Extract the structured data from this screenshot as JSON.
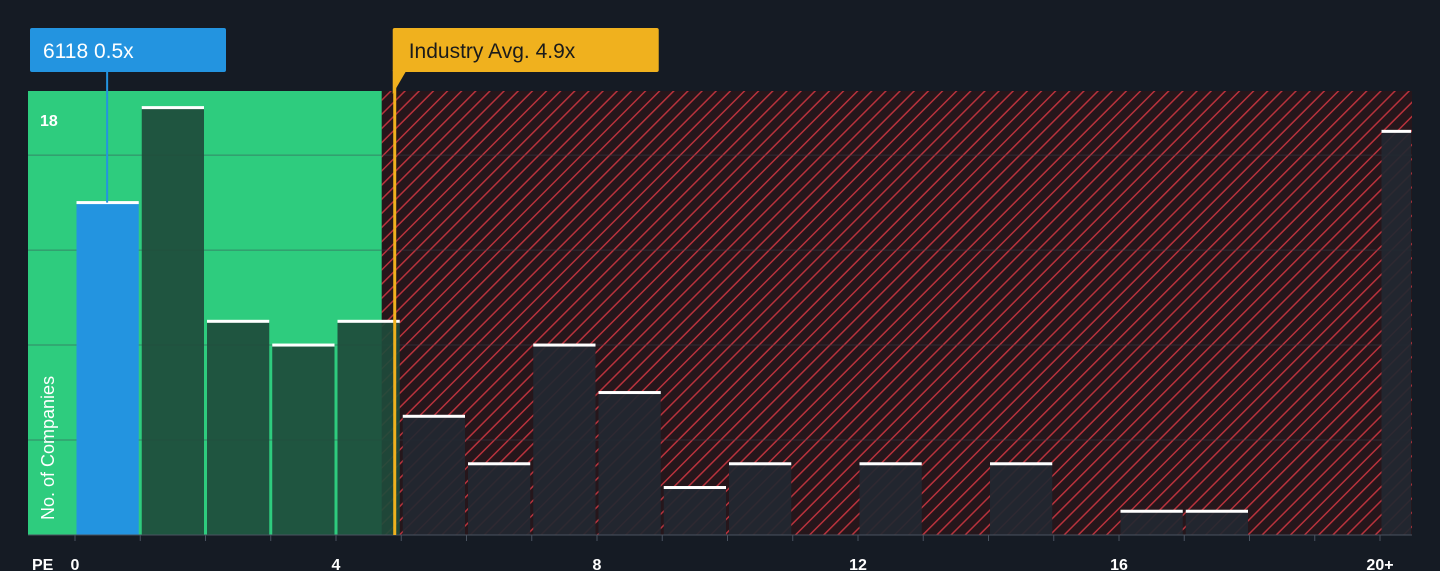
{
  "chart_data": {
    "type": "bar",
    "x_axis_label": "PE",
    "y_axis_label": "No. of Companies",
    "x_ticks": [
      "0",
      "4",
      "8",
      "12",
      "16",
      "20+"
    ],
    "y_ticks": [
      "18"
    ],
    "ylim": [
      0,
      18.7
    ],
    "x_range": [
      0,
      20.5
    ],
    "bins": [
      {
        "x0": 0,
        "x1": 1,
        "count": 14,
        "highlight": true
      },
      {
        "x0": 1,
        "x1": 2,
        "count": 18
      },
      {
        "x0": 2,
        "x1": 3,
        "count": 9
      },
      {
        "x0": 3,
        "x1": 4,
        "count": 8
      },
      {
        "x0": 4,
        "x1": 5,
        "count": 9
      },
      {
        "x0": 5,
        "x1": 6,
        "count": 5
      },
      {
        "x0": 6,
        "x1": 7,
        "count": 3
      },
      {
        "x0": 7,
        "x1": 8,
        "count": 8
      },
      {
        "x0": 8,
        "x1": 9,
        "count": 6
      },
      {
        "x0": 9,
        "x1": 10,
        "count": 2
      },
      {
        "x0": 10,
        "x1": 11,
        "count": 3
      },
      {
        "x0": 11,
        "x1": 12,
        "count": 0
      },
      {
        "x0": 12,
        "x1": 13,
        "count": 3
      },
      {
        "x0": 13,
        "x1": 14,
        "count": 0
      },
      {
        "x0": 14,
        "x1": 15,
        "count": 3
      },
      {
        "x0": 15,
        "x1": 16,
        "count": 0
      },
      {
        "x0": 16,
        "x1": 17,
        "count": 1
      },
      {
        "x0": 17,
        "x1": 18,
        "count": 1
      },
      {
        "x0": 18,
        "x1": 19,
        "count": 0
      },
      {
        "x0": 19,
        "x1": 20,
        "count": 0
      },
      {
        "x0": 20,
        "x1": 20.5,
        "count": 17
      }
    ],
    "company": {
      "label": "6118 0.5x",
      "pe": 0.5
    },
    "industry_avg": {
      "label": "Industry Avg. 4.9x",
      "pe": 4.9
    },
    "fair_zone_end": 4.7,
    "colors": {
      "background": "#151b24",
      "fair_zone": "#2ecc7e",
      "company_bar": "#2394e0",
      "bar_in_fair_zone": "#1e4b3b",
      "bar_dark": "#222831",
      "hatch_bg": "#26161b",
      "hatch_line": "#b8323c",
      "industry_line": "#f0b11e",
      "gridline": "#3a4350",
      "bar_cap": "#ffffff"
    }
  }
}
